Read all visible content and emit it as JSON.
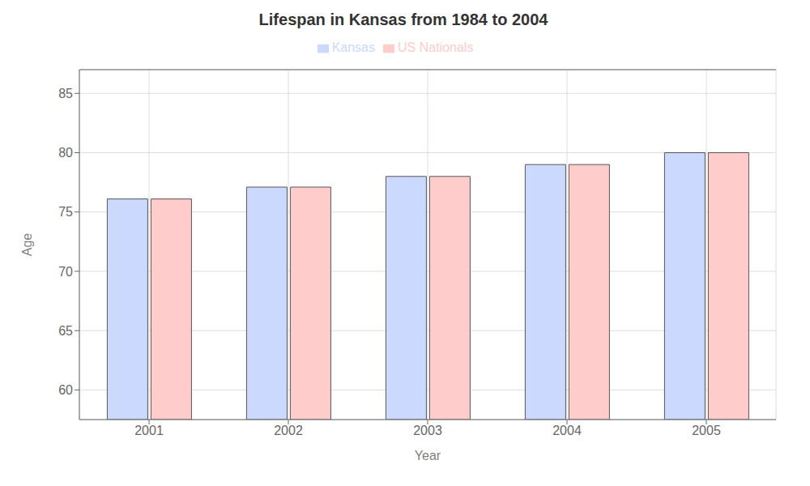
{
  "chart_data": {
    "type": "bar",
    "title": "Lifespan in Kansas from 1984 to 2004",
    "x_label": "Year",
    "y_label": "Age",
    "categories": [
      "2001",
      "2002",
      "2003",
      "2004",
      "2005"
    ],
    "series": [
      {
        "name": "Kansas",
        "color": "#ccd9ff",
        "values": [
          76.1,
          77.1,
          78.0,
          79.0,
          80.0
        ]
      },
      {
        "name": "US Nationals",
        "color": "#ffcccc",
        "values": [
          76.1,
          77.1,
          78.0,
          79.0,
          80.0
        ]
      }
    ],
    "ylim": [
      57.5,
      87
    ],
    "yticks": [
      60,
      65,
      70,
      75,
      80,
      85
    ],
    "grid": true,
    "legend": "top"
  }
}
